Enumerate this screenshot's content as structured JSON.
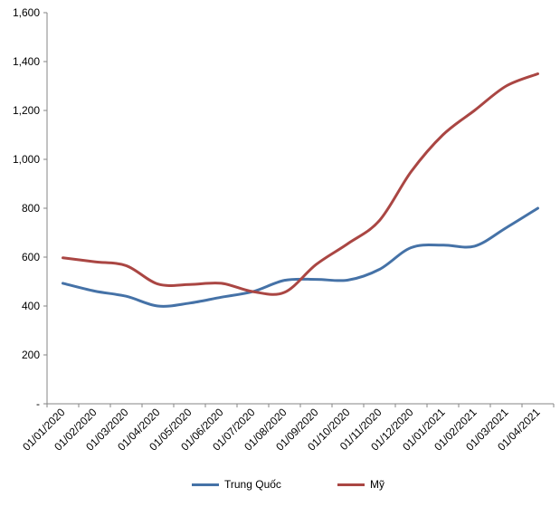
{
  "chart_data": {
    "type": "line",
    "title": "",
    "xlabel": "",
    "ylabel": "",
    "ylim": [
      0,
      1600
    ],
    "yticks": [
      0,
      200,
      400,
      600,
      800,
      1000,
      1200,
      1400,
      1600
    ],
    "ytick_labels": [
      "-",
      "200",
      "400",
      "600",
      "800",
      "1,000",
      "1,200",
      "1,400",
      "1,600"
    ],
    "x": [
      "01/01/2020",
      "01/02/2020",
      "01/03/2020",
      "01/04/2020",
      "01/05/2020",
      "01/06/2020",
      "01/07/2020",
      "01/08/2020",
      "01/09/2020",
      "01/10/2020",
      "01/11/2020",
      "01/12/2020",
      "01/01/2021",
      "01/02/2021",
      "01/03/2021",
      "01/04/2021"
    ],
    "grid": false,
    "legend_position": "bottom",
    "series": [
      {
        "name": "Trung Quốc",
        "color": "#4572A7",
        "values": [
          493,
          461,
          440,
          400,
          412,
          436,
          459,
          505,
          509,
          506,
          550,
          639,
          649,
          645,
          720,
          800
        ]
      },
      {
        "name": "Mỹ",
        "color": "#AA4643",
        "values": [
          597,
          581,
          565,
          490,
          488,
          493,
          459,
          456,
          570,
          655,
          750,
          950,
          1100,
          1200,
          1300,
          1350
        ]
      }
    ]
  }
}
